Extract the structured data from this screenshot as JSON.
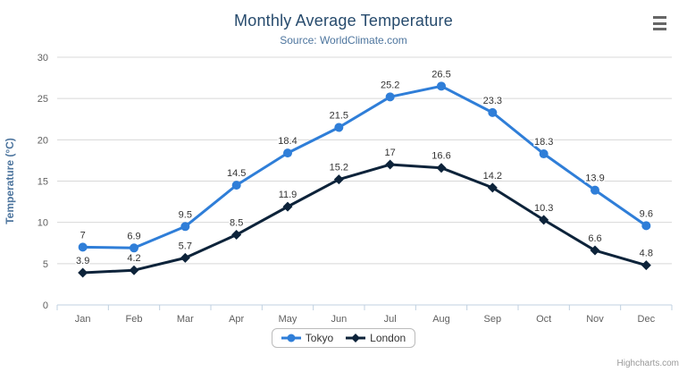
{
  "title": "Monthly Average Temperature",
  "subtitle": "Source: WorldClimate.com",
  "credits": "Highcharts.com",
  "colors": {
    "title": "#274b6d",
    "subtitle": "#4d759e",
    "axis_label": "#606060",
    "axis_title": "#4d759e",
    "grid": "#d8d8d8",
    "axis_line": "#c0d0e0",
    "data_label": "#333333",
    "legend_text": "#333333",
    "tokyo": "#2f7ed8",
    "london": "#0d233a"
  },
  "chart_data": {
    "type": "line",
    "title": "Monthly Average Temperature",
    "subtitle": "Source: WorldClimate.com",
    "xlabel": "",
    "ylabel": "Temperature (°C)",
    "ylim": [
      0,
      30
    ],
    "yticks": [
      0,
      5,
      10,
      15,
      20,
      25,
      30
    ],
    "grid": true,
    "legend_position": "bottom",
    "categories": [
      "Jan",
      "Feb",
      "Mar",
      "Apr",
      "May",
      "Jun",
      "Jul",
      "Aug",
      "Sep",
      "Oct",
      "Nov",
      "Dec"
    ],
    "series": [
      {
        "name": "Tokyo",
        "color": "#2f7ed8",
        "marker": "circle",
        "values": [
          7,
          6.9,
          9.5,
          14.5,
          18.4,
          21.5,
          25.2,
          26.5,
          23.3,
          18.3,
          13.9,
          9.6
        ]
      },
      {
        "name": "London",
        "color": "#0d233a",
        "marker": "diamond",
        "values": [
          3.9,
          4.2,
          5.7,
          8.5,
          11.9,
          15.2,
          17,
          16.6,
          14.2,
          10.3,
          6.6,
          4.8
        ]
      }
    ]
  }
}
